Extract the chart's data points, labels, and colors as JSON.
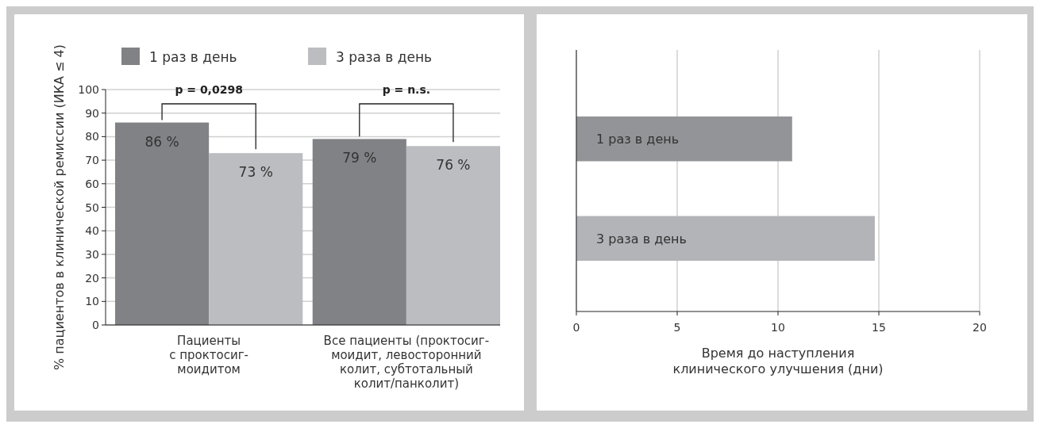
{
  "chart_data": [
    {
      "type": "bar",
      "ylabel": "% пациентов в клинической ремиссии (ИКА ≤ 4)",
      "categories": [
        "Пациенты\nс проктосиг-\nмоидитом",
        "Все пациенты (проктосиг-\nмоидит, левосторонний\nколит, субтотальный\nколит/панколит)"
      ],
      "series": [
        {
          "name": "1 раз в день",
          "color": "#818286",
          "values": [
            86,
            79
          ],
          "value_labels": [
            "86 %",
            "79 %"
          ]
        },
        {
          "name": "3 раза в день",
          "color": "#bcbdc1",
          "values": [
            73,
            76
          ],
          "value_labels": [
            "73 %",
            "76 %"
          ]
        }
      ],
      "ylim": [
        0,
        100
      ],
      "yticks": [
        0,
        10,
        20,
        30,
        40,
        50,
        60,
        70,
        80,
        90,
        100
      ],
      "grid": "y",
      "legend": "top",
      "annotations": [
        "p = 0,0298",
        "p = n.s."
      ]
    },
    {
      "type": "bar",
      "orientation": "horizontal",
      "xlabel": "Время до наступления\nклинического улучшения (дни)",
      "categories": [
        "1 раз в день",
        "3 раза в день"
      ],
      "values": [
        10.7,
        14.8
      ],
      "colors": [
        "#939497",
        "#b3b4b8"
      ],
      "xlim": [
        0,
        20
      ],
      "xticks": [
        0,
        5,
        10,
        15,
        20
      ],
      "grid": "x"
    }
  ]
}
